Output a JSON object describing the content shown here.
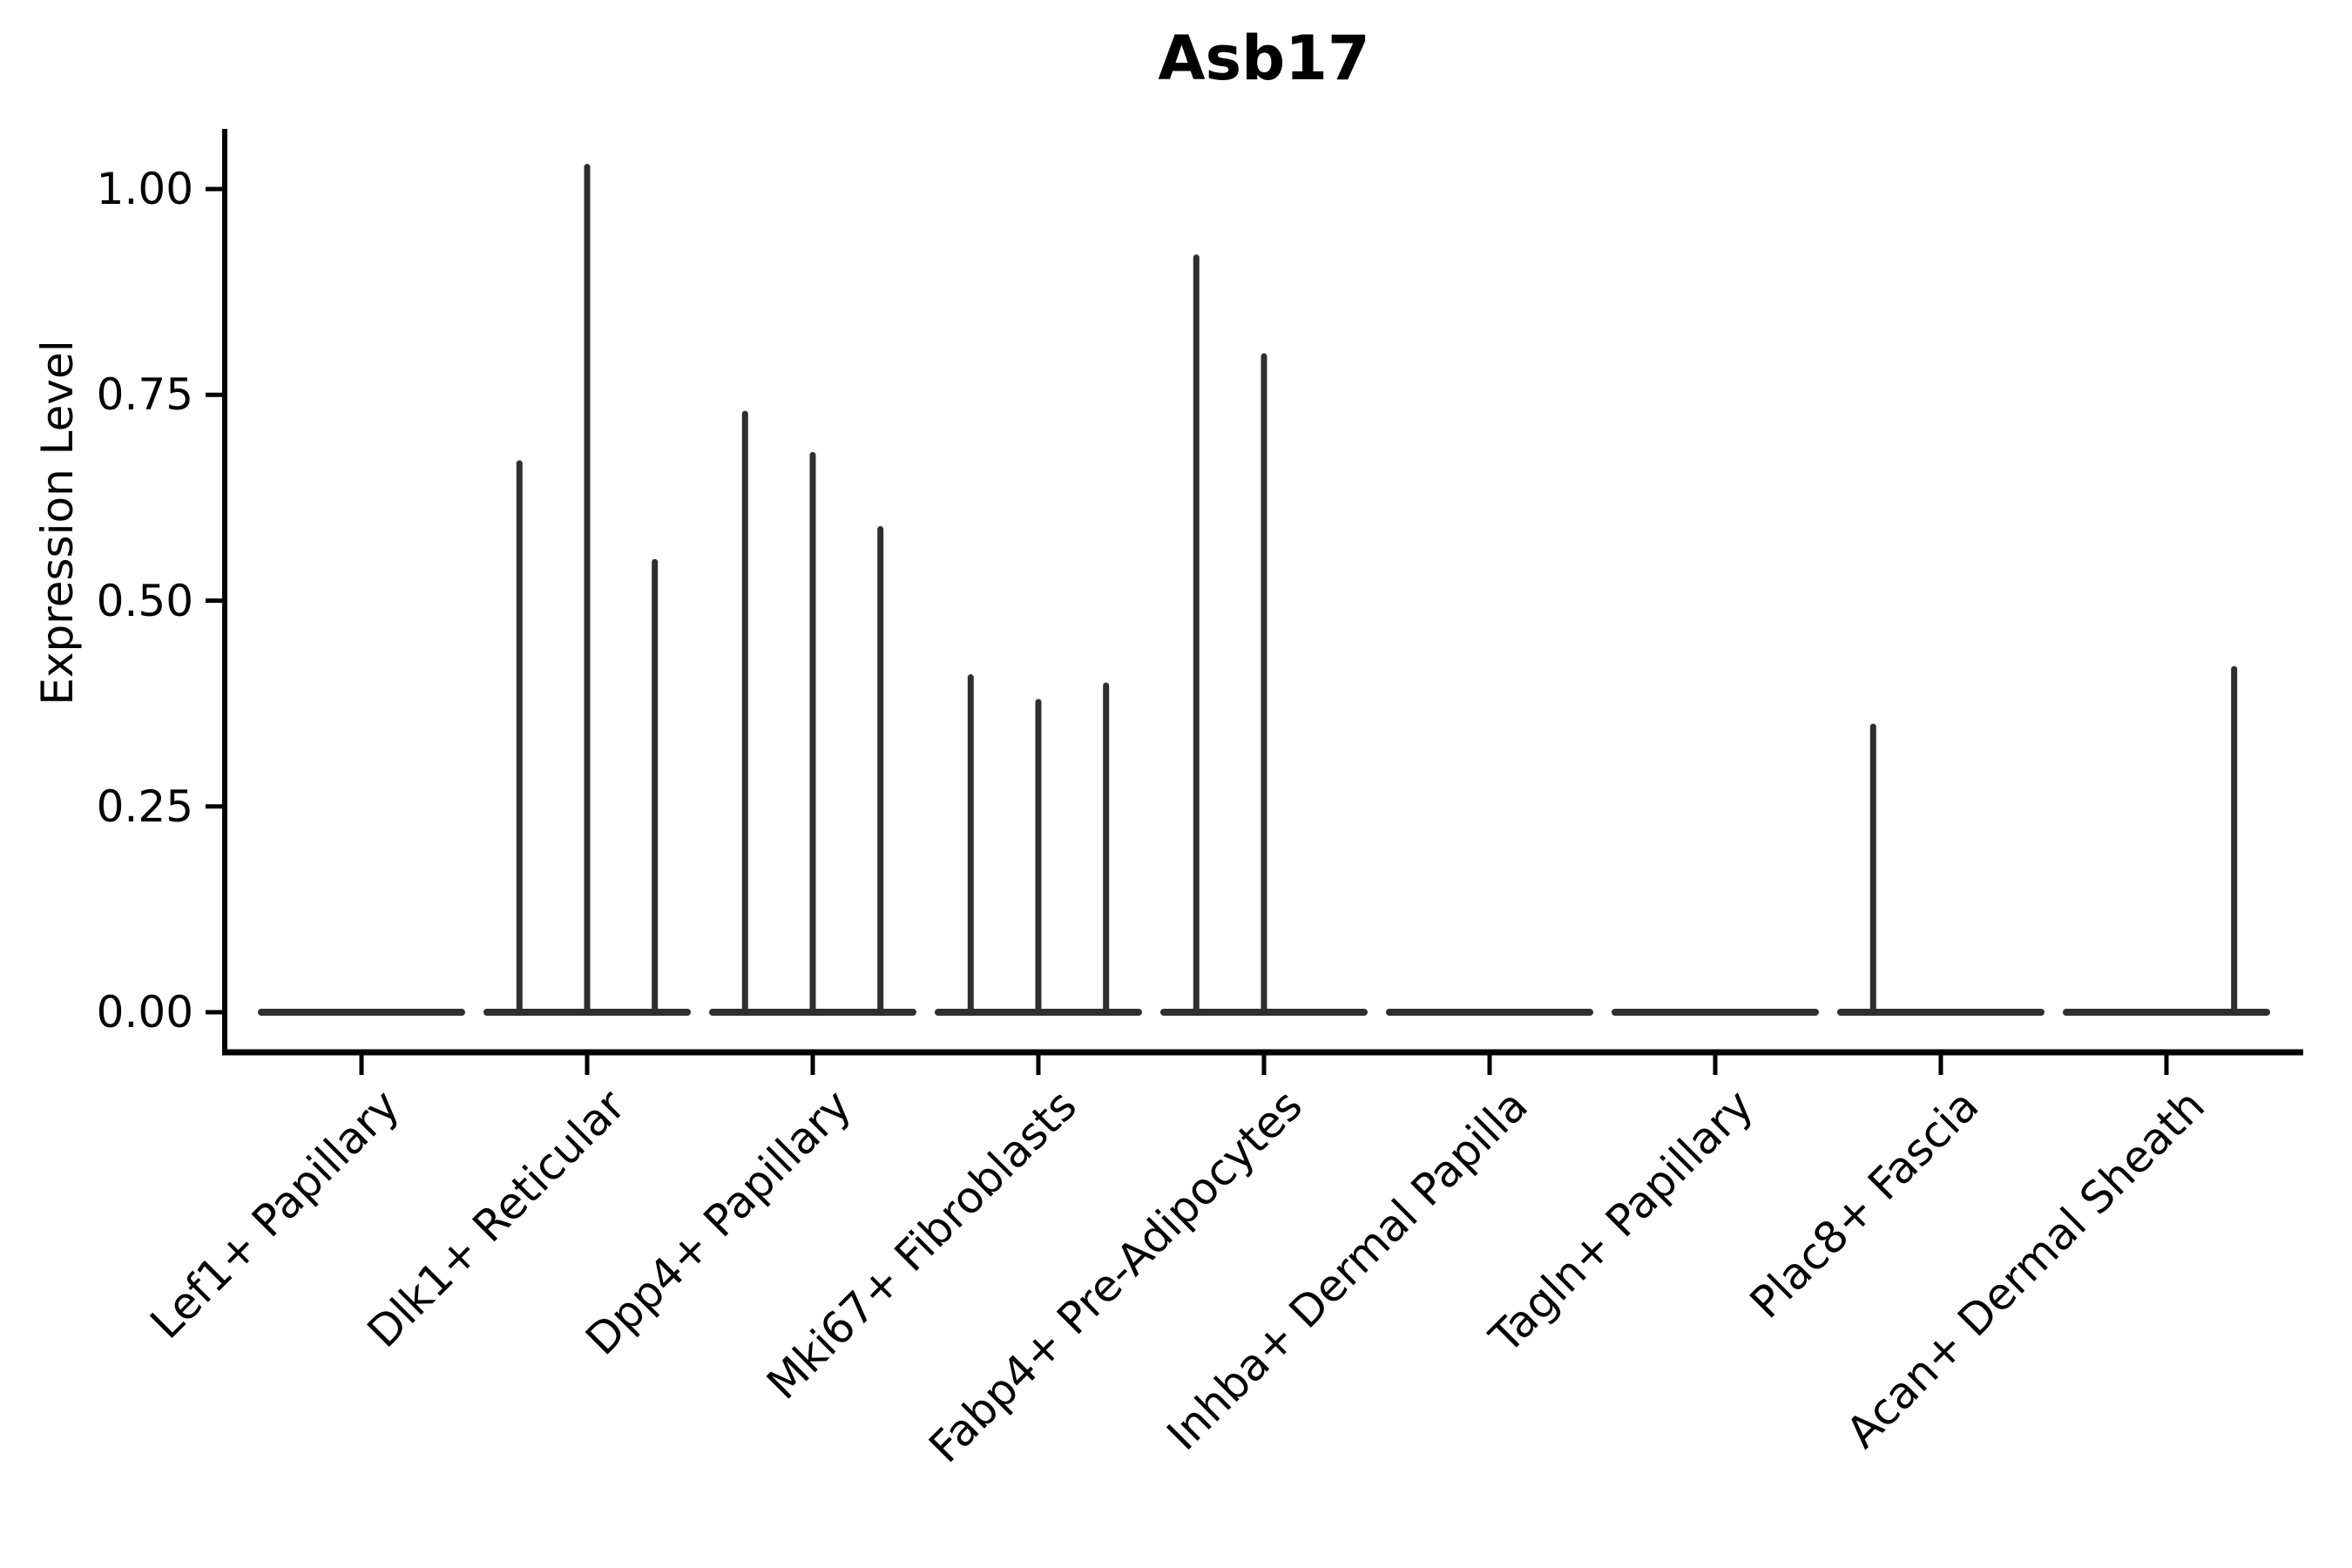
{
  "chart_data": {
    "type": "violin",
    "title": "Asb17",
    "ylabel": "Expression Level",
    "xlabel": "",
    "ylim": [
      -0.05,
      1.09
    ],
    "grid": false,
    "legend": false,
    "yticks": [
      {
        "label": "0.00",
        "value": 0.0
      },
      {
        "label": "0.25",
        "value": 0.25
      },
      {
        "label": "0.50",
        "value": 0.5
      },
      {
        "label": "0.75",
        "value": 0.75
      },
      {
        "label": "1.00",
        "value": 1.0
      }
    ],
    "categories": [
      "Lef1+ Papillary",
      "Dlk1+ Reticular",
      "Dpp4+ Papillary",
      "Mki67+ Fibroblasts",
      "Fabp4+ Pre-Adipocytes",
      "Inhba+ Dermal Papilla",
      "Tagln+ Papillary",
      "Plac8+ Fascia",
      "Acan+ Dermal Sheath"
    ],
    "baseline_value": 0.0,
    "groups": [
      {
        "label": "Lef1+ Papillary",
        "spikes": []
      },
      {
        "label": "Dlk1+ Reticular",
        "spikes": [
          {
            "pos": -0.3,
            "max": 0.67
          },
          {
            "pos": 0,
            "max": 1.03
          },
          {
            "pos": 0.3,
            "max": 0.55
          }
        ]
      },
      {
        "label": "Dpp4+ Papillary",
        "spikes": [
          {
            "pos": -0.3,
            "max": 0.73
          },
          {
            "pos": 0,
            "max": 0.68
          },
          {
            "pos": 0.3,
            "max": 0.59
          }
        ]
      },
      {
        "label": "Mki67+ Fibroblasts",
        "spikes": [
          {
            "pos": -0.3,
            "max": 0.41
          },
          {
            "pos": 0,
            "max": 0.38
          },
          {
            "pos": 0.3,
            "max": 0.4
          }
        ]
      },
      {
        "label": "Fabp4+ Pre-Adipocytes",
        "spikes": [
          {
            "pos": -0.3,
            "max": 0.92
          },
          {
            "pos": 0,
            "max": 0.8
          }
        ]
      },
      {
        "label": "Inhba+ Dermal Papilla",
        "spikes": []
      },
      {
        "label": "Tagln+ Papillary",
        "spikes": []
      },
      {
        "label": "Plac8+ Fascia",
        "spikes": [
          {
            "pos": -0.3,
            "max": 0.35
          }
        ]
      },
      {
        "label": "Acan+ Dermal Sheath",
        "spikes": [
          {
            "pos": 0.3,
            "max": 0.42
          }
        ]
      }
    ],
    "colors": {
      "violin": "#2f2f2f",
      "axis": "#000000",
      "text": "#000000",
      "background": "#ffffff"
    }
  }
}
